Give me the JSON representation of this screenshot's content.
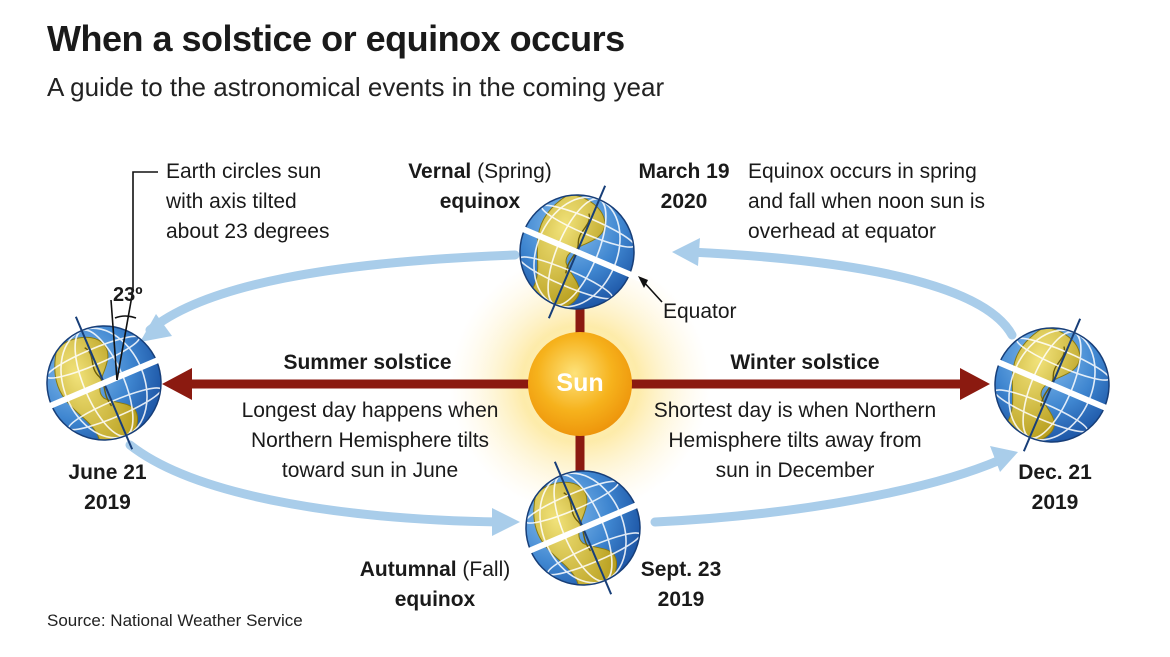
{
  "title": "When a solstice or equinox occurs",
  "subtitle": "A guide to the astronomical events in the coming year",
  "axis_note": {
    "line1": "Earth circles sun",
    "line2": "with axis tilted",
    "line3": "about 23 degrees",
    "angle_label": "23º"
  },
  "sun_label": "Sun",
  "vernal": {
    "name_bold": "Vernal",
    "name_rest": " (Spring)",
    "line2": "equinox",
    "date1": "March 19",
    "date2": "2020"
  },
  "equinox_note": {
    "line1": "Equinox occurs in spring",
    "line2": "and fall when noon sun is",
    "line3": "overhead at equator"
  },
  "equator_label": "Equator",
  "summer": {
    "title": "Summer solstice",
    "line1": "Longest day happens when",
    "line2": "Northern Hemisphere tilts",
    "line3": "toward sun in June",
    "date1": "June 21",
    "date2": "2019"
  },
  "winter": {
    "title": "Winter solstice",
    "line1": "Shortest day is when Northern",
    "line2": "Hemisphere tilts away from",
    "line3": "sun in December",
    "date1": "Dec. 21",
    "date2": "2019"
  },
  "autumnal": {
    "name_bold": "Autumnal",
    "name_rest": " (Fall)",
    "line2": "equinox",
    "date1": "Sept. 23",
    "date2": "2019"
  },
  "source": "Source: National Weather Service",
  "colors": {
    "orbit": "#a9cdea",
    "arrow": "#8b1a10",
    "ocean": "#4a8fd4",
    "land": "#d9c43a",
    "sun": "#f2a20e"
  }
}
